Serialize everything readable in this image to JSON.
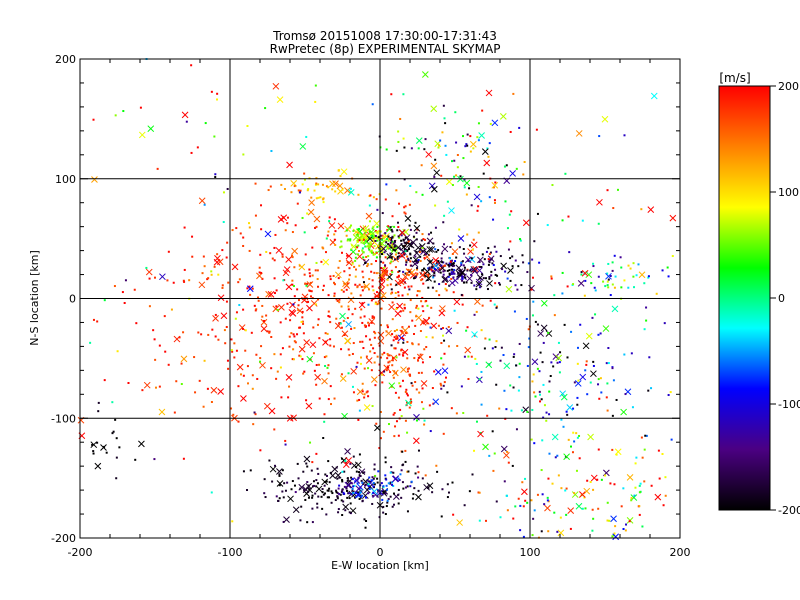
{
  "chart_data": {
    "type": "scatter",
    "title": "Tromsø 20151008 17:30:00-17:31:43",
    "subtitle": "RwPretec (8p) EXPERIMENTAL SKYMAP",
    "xlabel": "E-W location [km]",
    "ylabel": "N-S location [km]",
    "xlim": [
      -200,
      200
    ],
    "ylim": [
      -200,
      200
    ],
    "xticks": [
      "-200",
      "-100",
      "0",
      "100",
      "200"
    ],
    "yticks": [
      "-200",
      "-100",
      "0",
      "100",
      "200"
    ],
    "grid": true,
    "colorbar": {
      "label": "[m/s]",
      "range": [
        -200,
        200
      ],
      "ticks": [
        "200",
        "100",
        "0",
        "-100",
        "-200"
      ],
      "tick_values": [
        200,
        100,
        0,
        -100,
        -200
      ],
      "colormap": [
        "#000000",
        "#4b0082",
        "#0000ff",
        "#00ffff",
        "#00ff00",
        "#ffff00",
        "#ff8000",
        "#ff0000"
      ]
    },
    "markers": [
      "dot",
      "x"
    ],
    "clusters": [
      {
        "x": -60,
        "y": -25,
        "sx": 55,
        "sy": 40,
        "n": 320,
        "v": 185,
        "vs": 20
      },
      {
        "x": 10,
        "y": -20,
        "sx": 20,
        "sy": 45,
        "n": 320,
        "v": 180,
        "vs": 25
      },
      {
        "x": -5,
        "y": 47,
        "sx": 9,
        "sy": 7,
        "n": 160,
        "v": 60,
        "vs": 25
      },
      {
        "x": 15,
        "y": 43,
        "sx": 10,
        "sy": 9,
        "n": 110,
        "v": -180,
        "vs": 25
      },
      {
        "x": 55,
        "y": 25,
        "sx": 22,
        "sy": 9,
        "n": 220,
        "v": -170,
        "vs": 45
      },
      {
        "x": -20,
        "y": -158,
        "sx": 30,
        "sy": 12,
        "n": 260,
        "v": -190,
        "vs": 20
      },
      {
        "x": -5,
        "y": -155,
        "sx": 12,
        "sy": 6,
        "n": 80,
        "v": -90,
        "vs": 40
      },
      {
        "x": 100,
        "y": -60,
        "sx": 40,
        "sy": 35,
        "n": 180,
        "v": -80,
        "vs": 110
      },
      {
        "x": 140,
        "y": -170,
        "sx": 40,
        "sy": 25,
        "n": 160,
        "v": 70,
        "vs": 110
      },
      {
        "x": 50,
        "y": 115,
        "sx": 25,
        "sy": 20,
        "n": 90,
        "v": 0,
        "vs": 130
      },
      {
        "x": -40,
        "y": 92,
        "sx": 18,
        "sy": 6,
        "n": 50,
        "v": 120,
        "vs": 30
      },
      {
        "x": 160,
        "y": 18,
        "sx": 18,
        "sy": 7,
        "n": 50,
        "v": -10,
        "vs": 90
      },
      {
        "x": -185,
        "y": -125,
        "sx": 10,
        "sy": 10,
        "n": 20,
        "v": -200,
        "vs": 10
      },
      {
        "x": -40,
        "y": 30,
        "sx": 45,
        "sy": 25,
        "n": 140,
        "v": 180,
        "vs": 40
      },
      {
        "x": 0,
        "y": 0,
        "sx": 120,
        "sy": 110,
        "n": 380,
        "v": 80,
        "vs": 130
      }
    ]
  }
}
